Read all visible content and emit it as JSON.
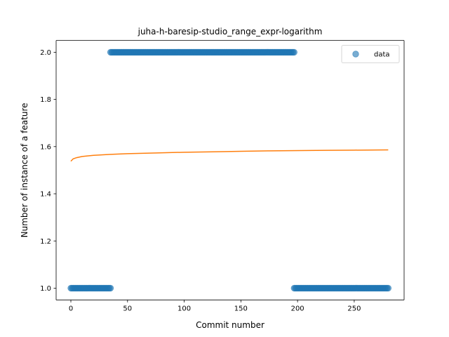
{
  "chart_data": {
    "type": "scatter",
    "title": "juha-h-baresip-studio_range_expr-logarithm",
    "xlabel": "Commit number",
    "ylabel": "Number of instance of a feature",
    "xlim": [
      -13,
      294
    ],
    "ylim": [
      0.95,
      2.05
    ],
    "xticks": [
      0,
      50,
      100,
      150,
      200,
      250
    ],
    "xtick_labels": [
      "0",
      "50",
      "100",
      "150",
      "200",
      "250"
    ],
    "yticks": [
      1.0,
      1.2,
      1.4,
      1.6,
      1.8,
      2.0
    ],
    "ytick_labels": [
      "1.0",
      "1.2",
      "1.4",
      "1.6",
      "1.8",
      "2.0"
    ],
    "grid": false,
    "legend_position": "top-right",
    "series": [
      {
        "name": "data",
        "kind": "scatter",
        "color": "#1f77b4",
        "alpha": 0.6,
        "segments": [
          {
            "x_start": 0,
            "x_end": 35,
            "y": 1.0
          },
          {
            "x_start": 35,
            "x_end": 197,
            "y": 2.0
          },
          {
            "x_start": 197,
            "x_end": 280,
            "y": 1.0
          }
        ]
      },
      {
        "kind": "line",
        "color": "#ff7f0e",
        "model": "logarithmic",
        "points": [
          [
            0,
            1.538
          ],
          [
            2,
            1.548
          ],
          [
            5,
            1.553
          ],
          [
            10,
            1.558
          ],
          [
            20,
            1.563
          ],
          [
            35,
            1.567
          ],
          [
            50,
            1.57
          ],
          [
            75,
            1.573
          ],
          [
            100,
            1.576
          ],
          [
            125,
            1.578
          ],
          [
            150,
            1.58
          ],
          [
            175,
            1.582
          ],
          [
            200,
            1.583
          ],
          [
            225,
            1.584
          ],
          [
            250,
            1.585
          ],
          [
            280,
            1.586
          ]
        ]
      }
    ]
  }
}
